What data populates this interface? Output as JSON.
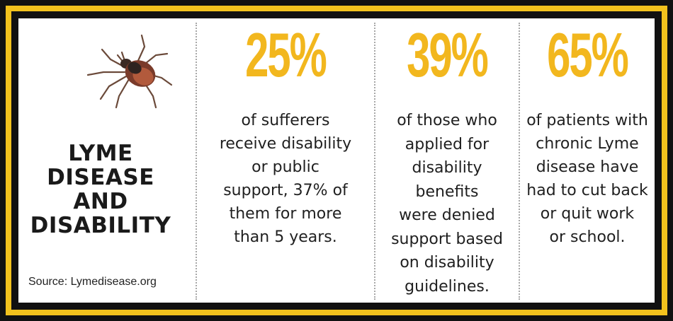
{
  "title_lines": [
    "LYME",
    "DISEASE",
    "AND",
    "DISABILITY"
  ],
  "source": "Source: Lymedisease.org",
  "colors": {
    "frame": "#f2c21d",
    "border": "#111111",
    "accent": "#f2b71e",
    "text": "#1f1f1f"
  },
  "icons": {
    "tick": "tick-insect-illustration"
  },
  "stats": [
    {
      "value": "25%",
      "lines": [
        "of sufferers",
        "receive disability",
        "or public",
        "support, 37% of",
        "them for more",
        "than 5 years."
      ]
    },
    {
      "value": "39%",
      "lines": [
        "of those who",
        "applied for",
        "disability",
        "benefits",
        "were denied",
        "support based",
        "on disability",
        "guidelines."
      ]
    },
    {
      "value": "65%",
      "lines": [
        "of patients with",
        "chronic Lyme",
        "disease have",
        "had to cut back",
        "or quit work",
        "or school."
      ]
    }
  ]
}
